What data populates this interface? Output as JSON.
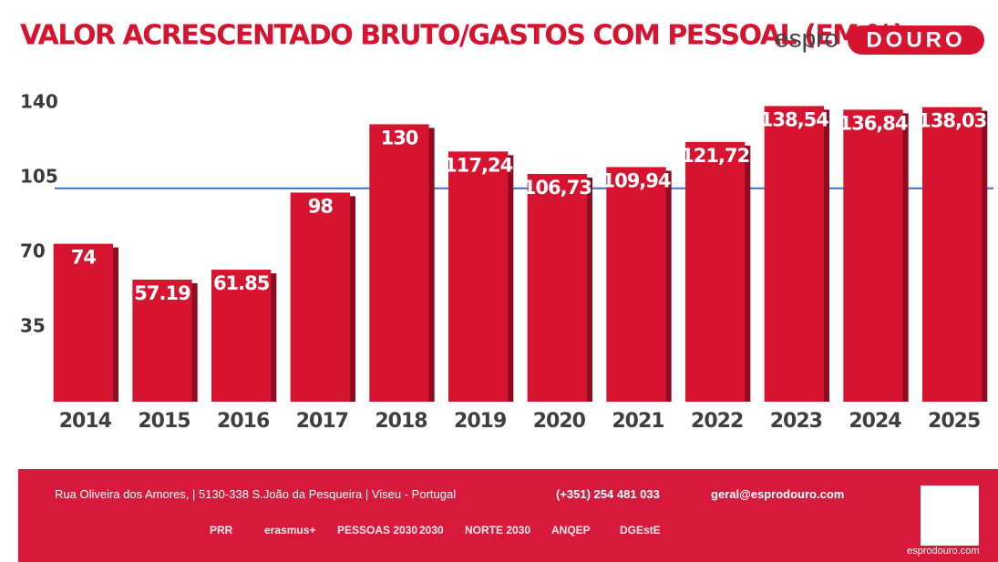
{
  "chart_data": {
    "type": "bar",
    "title": "VALOR ACRESCENTADO BRUTO/GASTOS COM PESSOAL (EM %)",
    "categories": [
      "2014",
      "2015",
      "2016",
      "2017",
      "2018",
      "2019",
      "2020",
      "2021",
      "2022",
      "2023",
      "2024",
      "2025"
    ],
    "values": [
      74,
      57.19,
      61.85,
      98,
      130,
      117.24,
      106.73,
      109.94,
      121.72,
      138.54,
      136.84,
      138.03
    ],
    "value_labels": [
      "74",
      "57.19",
      "61.85",
      "98",
      "130",
      "117,24",
      "106,73",
      "109,94",
      "121,72",
      "138,54",
      "136,84",
      "138,03"
    ],
    "color": "#d7142f",
    "ylim": [
      0,
      140
    ],
    "yticks": [
      35,
      70,
      105,
      140
    ],
    "reference_line": 100,
    "reference_color": "#3b6fc4",
    "grid": false
  },
  "logo": {
    "prefix": "espro",
    "suffix": "DOURO",
    "url": "esprodouro.com"
  },
  "footer": {
    "address": "Rua Oliveira dos Amores, | 5130-338 S.João da Pesqueira | Viseu - Portugal",
    "phone": "(+351) 254 481 033",
    "email": "geral@esprodouro.com",
    "partners": [
      "PRR",
      "erasmus+",
      "PESSOAS 2030",
      "2030",
      "NORTE 2030",
      "ANQEP",
      "DGEstE"
    ]
  }
}
